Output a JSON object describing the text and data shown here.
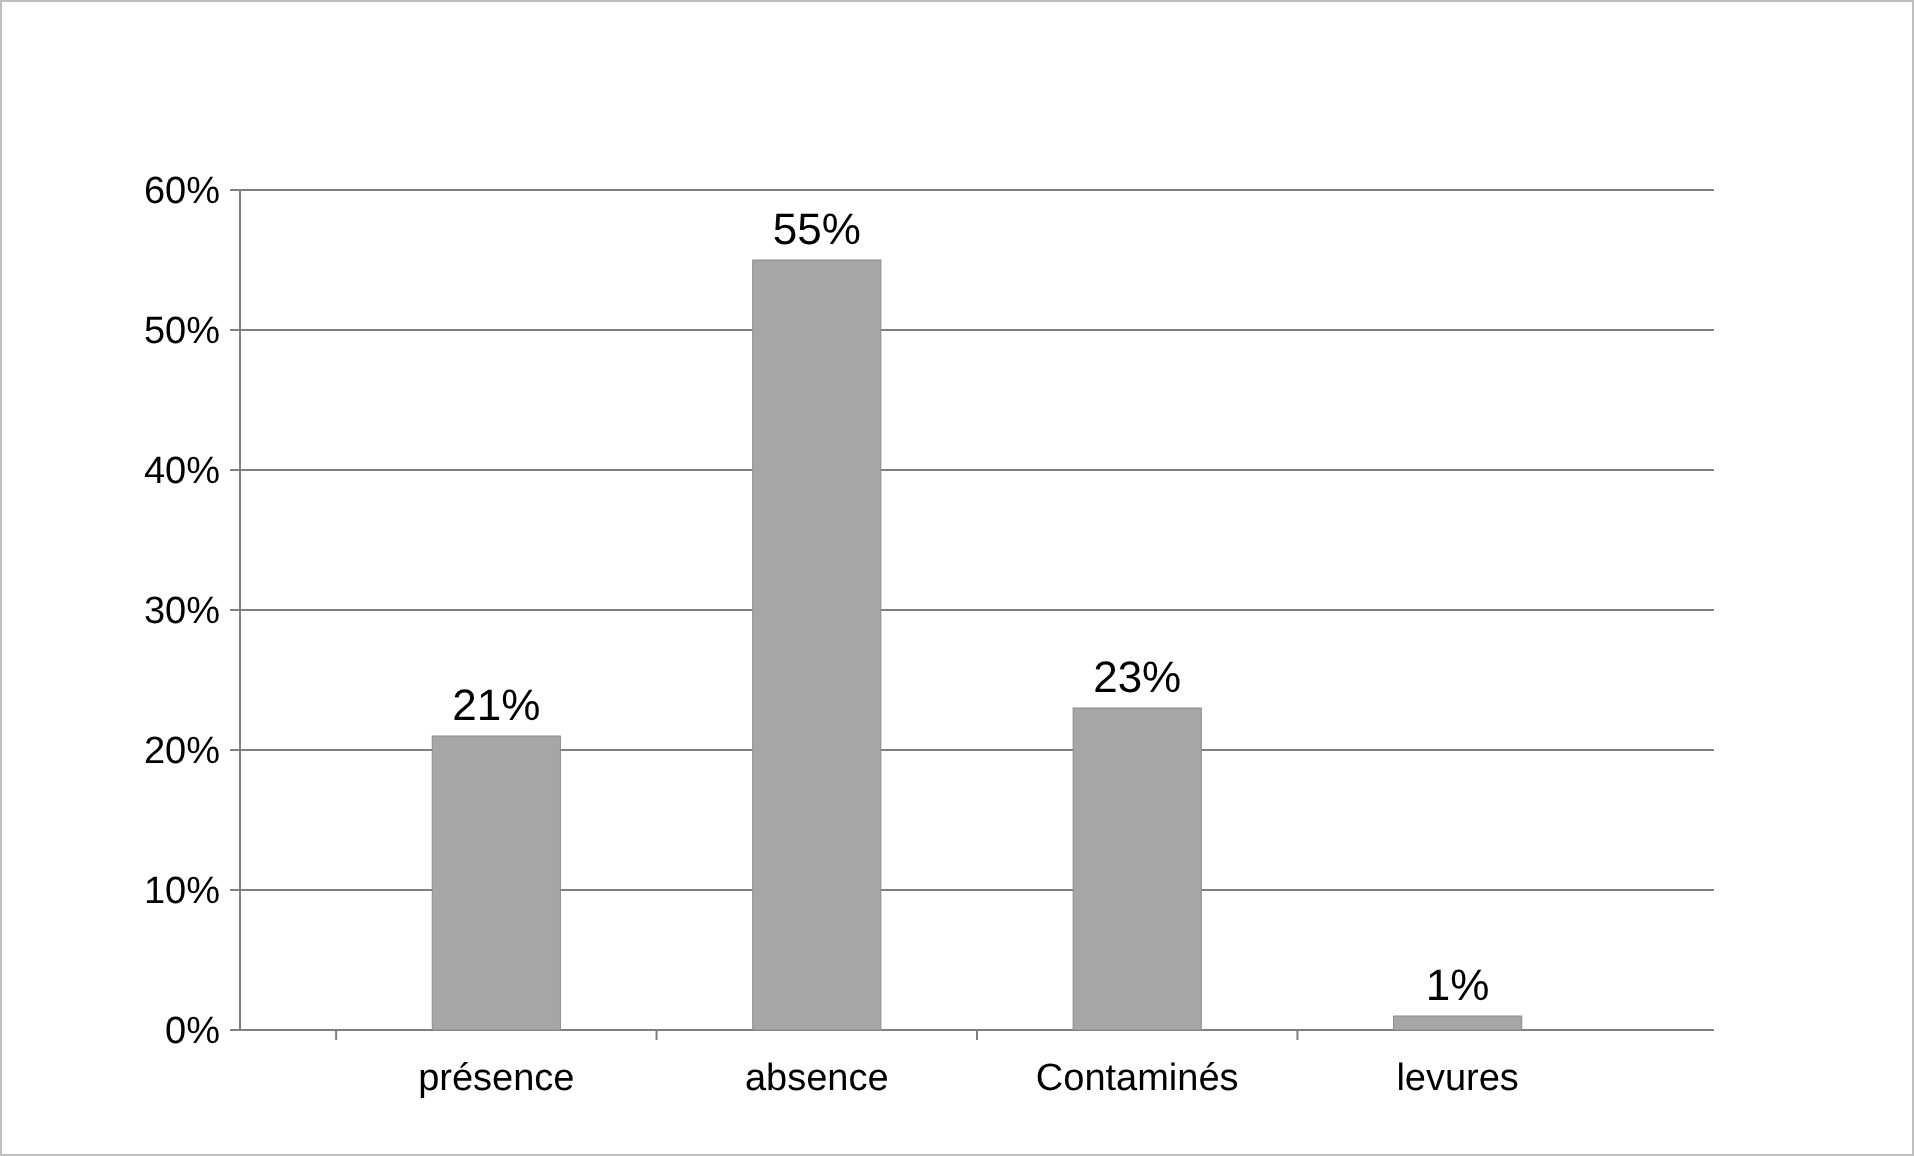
{
  "chart_data": {
    "type": "bar",
    "categories": [
      "présence",
      "absence",
      "Contaminés",
      "levures"
    ],
    "values": [
      21,
      55,
      23,
      1
    ],
    "color": "#a6a6a6",
    "value_labels": [
      "21%",
      "55%",
      "23%",
      "1%"
    ],
    "ylim": [
      0,
      60
    ],
    "yticks": [
      {
        "value": 0,
        "label": "0%"
      },
      {
        "value": 10,
        "label": "10%"
      },
      {
        "value": 20,
        "label": "20%"
      },
      {
        "value": 30,
        "label": "30%"
      },
      {
        "value": 40,
        "label": "40%"
      },
      {
        "value": 50,
        "label": "50%"
      },
      {
        "value": 60,
        "label": "60%"
      }
    ],
    "grid": "y"
  }
}
